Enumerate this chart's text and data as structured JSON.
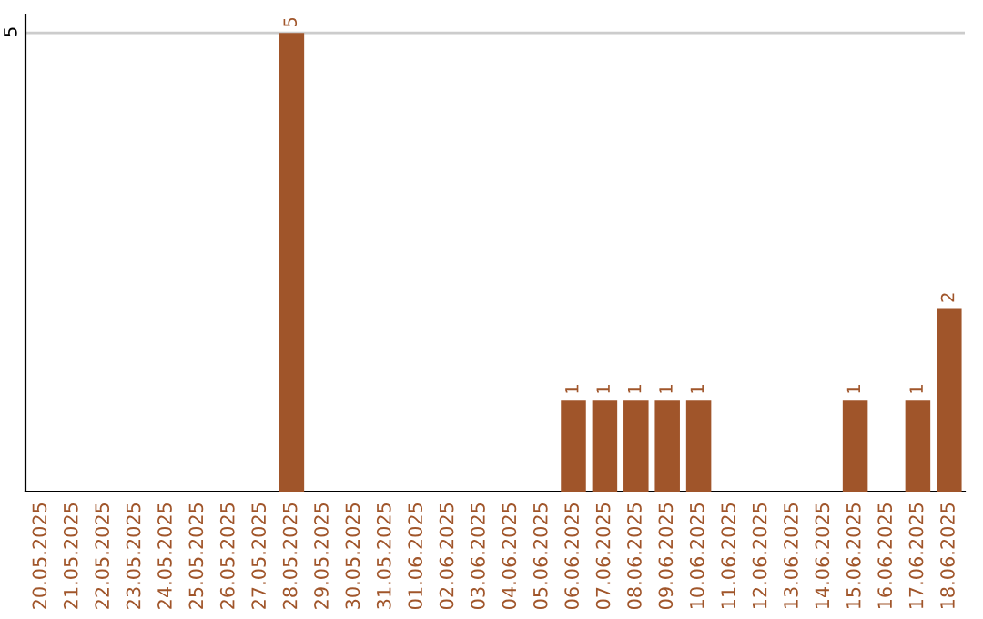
{
  "chart_data": {
    "type": "bar",
    "categories": [
      "20.05.2025",
      "21.05.2025",
      "22.05.2025",
      "23.05.2025",
      "24.05.2025",
      "25.05.2025",
      "26.05.2025",
      "27.05.2025",
      "28.05.2025",
      "29.05.2025",
      "30.05.2025",
      "31.05.2025",
      "01.06.2025",
      "02.06.2025",
      "03.06.2025",
      "04.06.2025",
      "05.06.2025",
      "06.06.2025",
      "07.06.2025",
      "08.06.2025",
      "09.06.2025",
      "10.06.2025",
      "11.06.2025",
      "12.06.2025",
      "13.06.2025",
      "14.06.2025",
      "15.06.2025",
      "16.06.2025",
      "17.06.2025",
      "18.06.2025"
    ],
    "values": [
      0,
      0,
      0,
      0,
      0,
      0,
      0,
      0,
      5,
      0,
      0,
      0,
      0,
      0,
      0,
      0,
      0,
      1,
      1,
      1,
      1,
      1,
      0,
      0,
      0,
      0,
      1,
      0,
      1,
      2
    ],
    "value_labels": [
      null,
      null,
      null,
      null,
      null,
      null,
      null,
      null,
      "5",
      null,
      null,
      null,
      null,
      null,
      null,
      null,
      null,
      "1",
      "1",
      "1",
      "1",
      "1",
      null,
      null,
      null,
      null,
      "1",
      null,
      "1",
      "2"
    ],
    "color": "#a0552a",
    "ylim": [
      0,
      5.2
    ],
    "yticks": [
      5
    ],
    "grid": "y"
  }
}
